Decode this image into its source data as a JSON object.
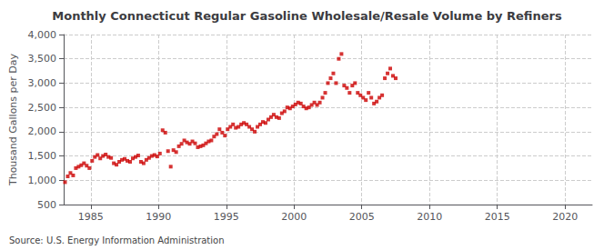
{
  "chart_data": {
    "type": "scatter",
    "title": "Monthly Connecticut Regular Gasoline Wholesale/Resale Volume by Refiners",
    "ylabel": "Thousand Gallons per Day",
    "annotations": [
      "Source: U.S. Energy Information Administration"
    ],
    "color": "#cc0000",
    "marker": "square",
    "grid": true,
    "xlim": [
      1983.0,
      2022.0
    ],
    "ylim": [
      500,
      4000
    ],
    "xticks": [
      1985,
      1990,
      1995,
      2000,
      2005,
      2010,
      2015,
      2020
    ],
    "yticks": [
      500,
      {
        "value": 1000,
        "label": "1,000"
      },
      {
        "value": 1500,
        "label": "1,500"
      },
      {
        "value": 2000,
        "label": "2,000"
      },
      {
        "value": 2500,
        "label": "2,500"
      },
      {
        "value": 3000,
        "label": "3,000"
      },
      {
        "value": 3500,
        "label": "3,500"
      },
      {
        "value": 4000,
        "label": "4,000"
      }
    ],
    "x": [
      1983.1,
      1983.3,
      1983.5,
      1983.7,
      1983.9,
      1984.1,
      1984.3,
      1984.5,
      1984.7,
      1984.9,
      1985.1,
      1985.3,
      1985.5,
      1985.7,
      1985.9,
      1986.1,
      1986.3,
      1986.5,
      1986.7,
      1986.9,
      1987.1,
      1987.3,
      1987.5,
      1987.7,
      1987.9,
      1988.1,
      1988.3,
      1988.5,
      1988.7,
      1988.9,
      1989.1,
      1989.3,
      1989.5,
      1989.7,
      1989.9,
      1990.1,
      1990.3,
      1990.5,
      1990.7,
      1990.9,
      1991.1,
      1991.3,
      1991.5,
      1991.7,
      1991.9,
      1992.1,
      1992.3,
      1992.5,
      1992.7,
      1992.9,
      1993.1,
      1993.3,
      1993.5,
      1993.7,
      1993.9,
      1994.1,
      1994.3,
      1994.5,
      1994.7,
      1994.9,
      1995.1,
      1995.3,
      1995.5,
      1995.7,
      1995.9,
      1996.1,
      1996.3,
      1996.5,
      1996.7,
      1996.9,
      1997.1,
      1997.3,
      1997.5,
      1997.7,
      1997.9,
      1998.1,
      1998.3,
      1998.5,
      1998.7,
      1998.9,
      1999.1,
      1999.3,
      1999.5,
      1999.7,
      1999.9,
      2000.1,
      2000.3,
      2000.5,
      2000.7,
      2000.9,
      2001.1,
      2001.3,
      2001.5,
      2001.7,
      2001.9,
      2002.1,
      2002.3,
      2002.5,
      2002.7,
      2002.9,
      2003.1,
      2003.3,
      2003.5,
      2003.7,
      2003.9,
      2004.1,
      2004.3,
      2004.5,
      2004.7,
      2004.9,
      2005.1,
      2005.3,
      2005.5,
      2005.7,
      2005.9,
      2006.1,
      2006.3,
      2006.5,
      2006.7,
      2006.9,
      2007.1,
      2007.3,
      2007.5
    ],
    "values": [
      960,
      1080,
      1150,
      1100,
      1250,
      1280,
      1310,
      1350,
      1300,
      1250,
      1400,
      1480,
      1520,
      1450,
      1500,
      1530,
      1480,
      1460,
      1350,
      1320,
      1380,
      1420,
      1440,
      1400,
      1380,
      1450,
      1480,
      1510,
      1380,
      1350,
      1420,
      1460,
      1500,
      1520,
      1490,
      1550,
      2030,
      1980,
      1600,
      1280,
      1620,
      1580,
      1700,
      1750,
      1820,
      1780,
      1750,
      1800,
      1760,
      1680,
      1700,
      1720,
      1760,
      1800,
      1820,
      1900,
      1950,
      2050,
      1980,
      1920,
      2050,
      2100,
      2150,
      2080,
      2100,
      2150,
      2180,
      2150,
      2100,
      2050,
      2000,
      2100,
      2150,
      2200,
      2180,
      2250,
      2300,
      2350,
      2300,
      2280,
      2380,
      2420,
      2500,
      2480,
      2520,
      2560,
      2600,
      2580,
      2520,
      2480,
      2500,
      2550,
      2600,
      2550,
      2600,
      2700,
      2800,
      3000,
      3100,
      3200,
      3000,
      3500,
      3600,
      2950,
      2900,
      2800,
      2950,
      3000,
      2800,
      2750,
      2700,
      2650,
      2800,
      2700,
      2580,
      2620,
      2700,
      2750,
      3100,
      3200,
      3300,
      3150,
      3100
    ]
  }
}
